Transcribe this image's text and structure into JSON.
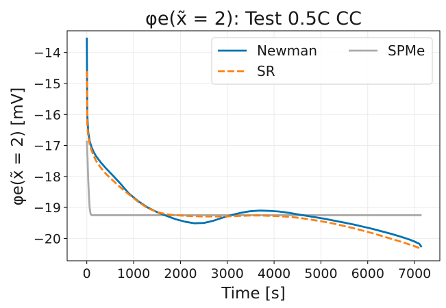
{
  "chart_data": {
    "type": "line",
    "title": "φe(x̃ = 2): Test 0.5C CC",
    "xlabel": "Time [s]",
    "ylabel": "φe(x̃ = 2) [mV]",
    "xlim": [
      -420,
      7540
    ],
    "ylim": [
      -20.72,
      -13.3
    ],
    "xticks": [
      0,
      1000,
      2000,
      3000,
      4000,
      5000,
      6000,
      7000
    ],
    "yticks": [
      -14,
      -15,
      -16,
      -17,
      -18,
      -19,
      -20
    ],
    "xtick_labels": [
      "0",
      "1000",
      "2000",
      "3000",
      "4000",
      "5000",
      "6000",
      "7000"
    ],
    "ytick_labels": [
      "−14",
      "−15",
      "−16",
      "−17",
      "−18",
      "−19",
      "−20"
    ],
    "grid": true,
    "legend": {
      "position": "top-right",
      "columns": 2
    },
    "series": [
      {
        "name": "Newman",
        "color": "#0072B2",
        "dash": "solid",
        "x": [
          0,
          10,
          30,
          60,
          100,
          150,
          200,
          300,
          400,
          500,
          700,
          900,
          1100,
          1300,
          1500,
          1700,
          1900,
          2100,
          2300,
          2500,
          2700,
          2900,
          3100,
          3300,
          3500,
          3700,
          3900,
          4100,
          4300,
          4500,
          4700,
          4900,
          5100,
          5300,
          5500,
          5700,
          5900,
          6100,
          6300,
          6500,
          6700,
          6900,
          7000,
          7100,
          7150
        ],
        "y": [
          -13.52,
          -16.0,
          -16.55,
          -16.85,
          -17.05,
          -17.22,
          -17.35,
          -17.55,
          -17.72,
          -17.88,
          -18.2,
          -18.55,
          -18.8,
          -19.0,
          -19.15,
          -19.27,
          -19.38,
          -19.46,
          -19.51,
          -19.5,
          -19.43,
          -19.33,
          -19.24,
          -19.17,
          -19.12,
          -19.1,
          -19.11,
          -19.13,
          -19.17,
          -19.22,
          -19.27,
          -19.32,
          -19.37,
          -19.43,
          -19.49,
          -19.55,
          -19.62,
          -19.69,
          -19.77,
          -19.85,
          -19.94,
          -20.04,
          -20.1,
          -20.17,
          -20.28
        ]
      },
      {
        "name": "SR",
        "color": "#FF7F0E",
        "dash": "dashed",
        "x": [
          0,
          10,
          30,
          60,
          100,
          150,
          200,
          300,
          400,
          500,
          700,
          900,
          1100,
          1300,
          1500,
          1700,
          1900,
          2100,
          2300,
          2500,
          2700,
          2900,
          3100,
          3300,
          3500,
          3700,
          3900,
          4100,
          4300,
          4500,
          4700,
          4900,
          5100,
          5300,
          5500,
          5700,
          5900,
          6100,
          6300,
          6500,
          6700,
          6900,
          7000,
          7100,
          7150
        ],
        "y": [
          -14.6,
          -16.3,
          -16.7,
          -16.95,
          -17.15,
          -17.35,
          -17.5,
          -17.72,
          -17.9,
          -18.05,
          -18.33,
          -18.58,
          -18.82,
          -19.02,
          -19.15,
          -19.22,
          -19.25,
          -19.27,
          -19.28,
          -19.29,
          -19.29,
          -19.29,
          -19.28,
          -19.27,
          -19.26,
          -19.26,
          -19.27,
          -19.28,
          -19.3,
          -19.33,
          -19.37,
          -19.42,
          -19.47,
          -19.53,
          -19.6,
          -19.67,
          -19.75,
          -19.83,
          -19.92,
          -20.01,
          -20.1,
          -20.2,
          -20.25,
          -20.31,
          -20.35
        ]
      },
      {
        "name": "SPMe",
        "color": "#AAAAAA",
        "dash": "solid",
        "x": [
          0,
          5,
          15,
          30,
          45,
          60,
          80,
          100,
          200,
          1000,
          2000,
          3000,
          4000,
          5000,
          6000,
          7000,
          7150
        ],
        "y": [
          -16.85,
          -17.0,
          -17.4,
          -18.1,
          -18.6,
          -19.0,
          -19.2,
          -19.25,
          -19.25,
          -19.25,
          -19.25,
          -19.25,
          -19.25,
          -19.25,
          -19.25,
          -19.25,
          -19.25
        ]
      }
    ]
  }
}
